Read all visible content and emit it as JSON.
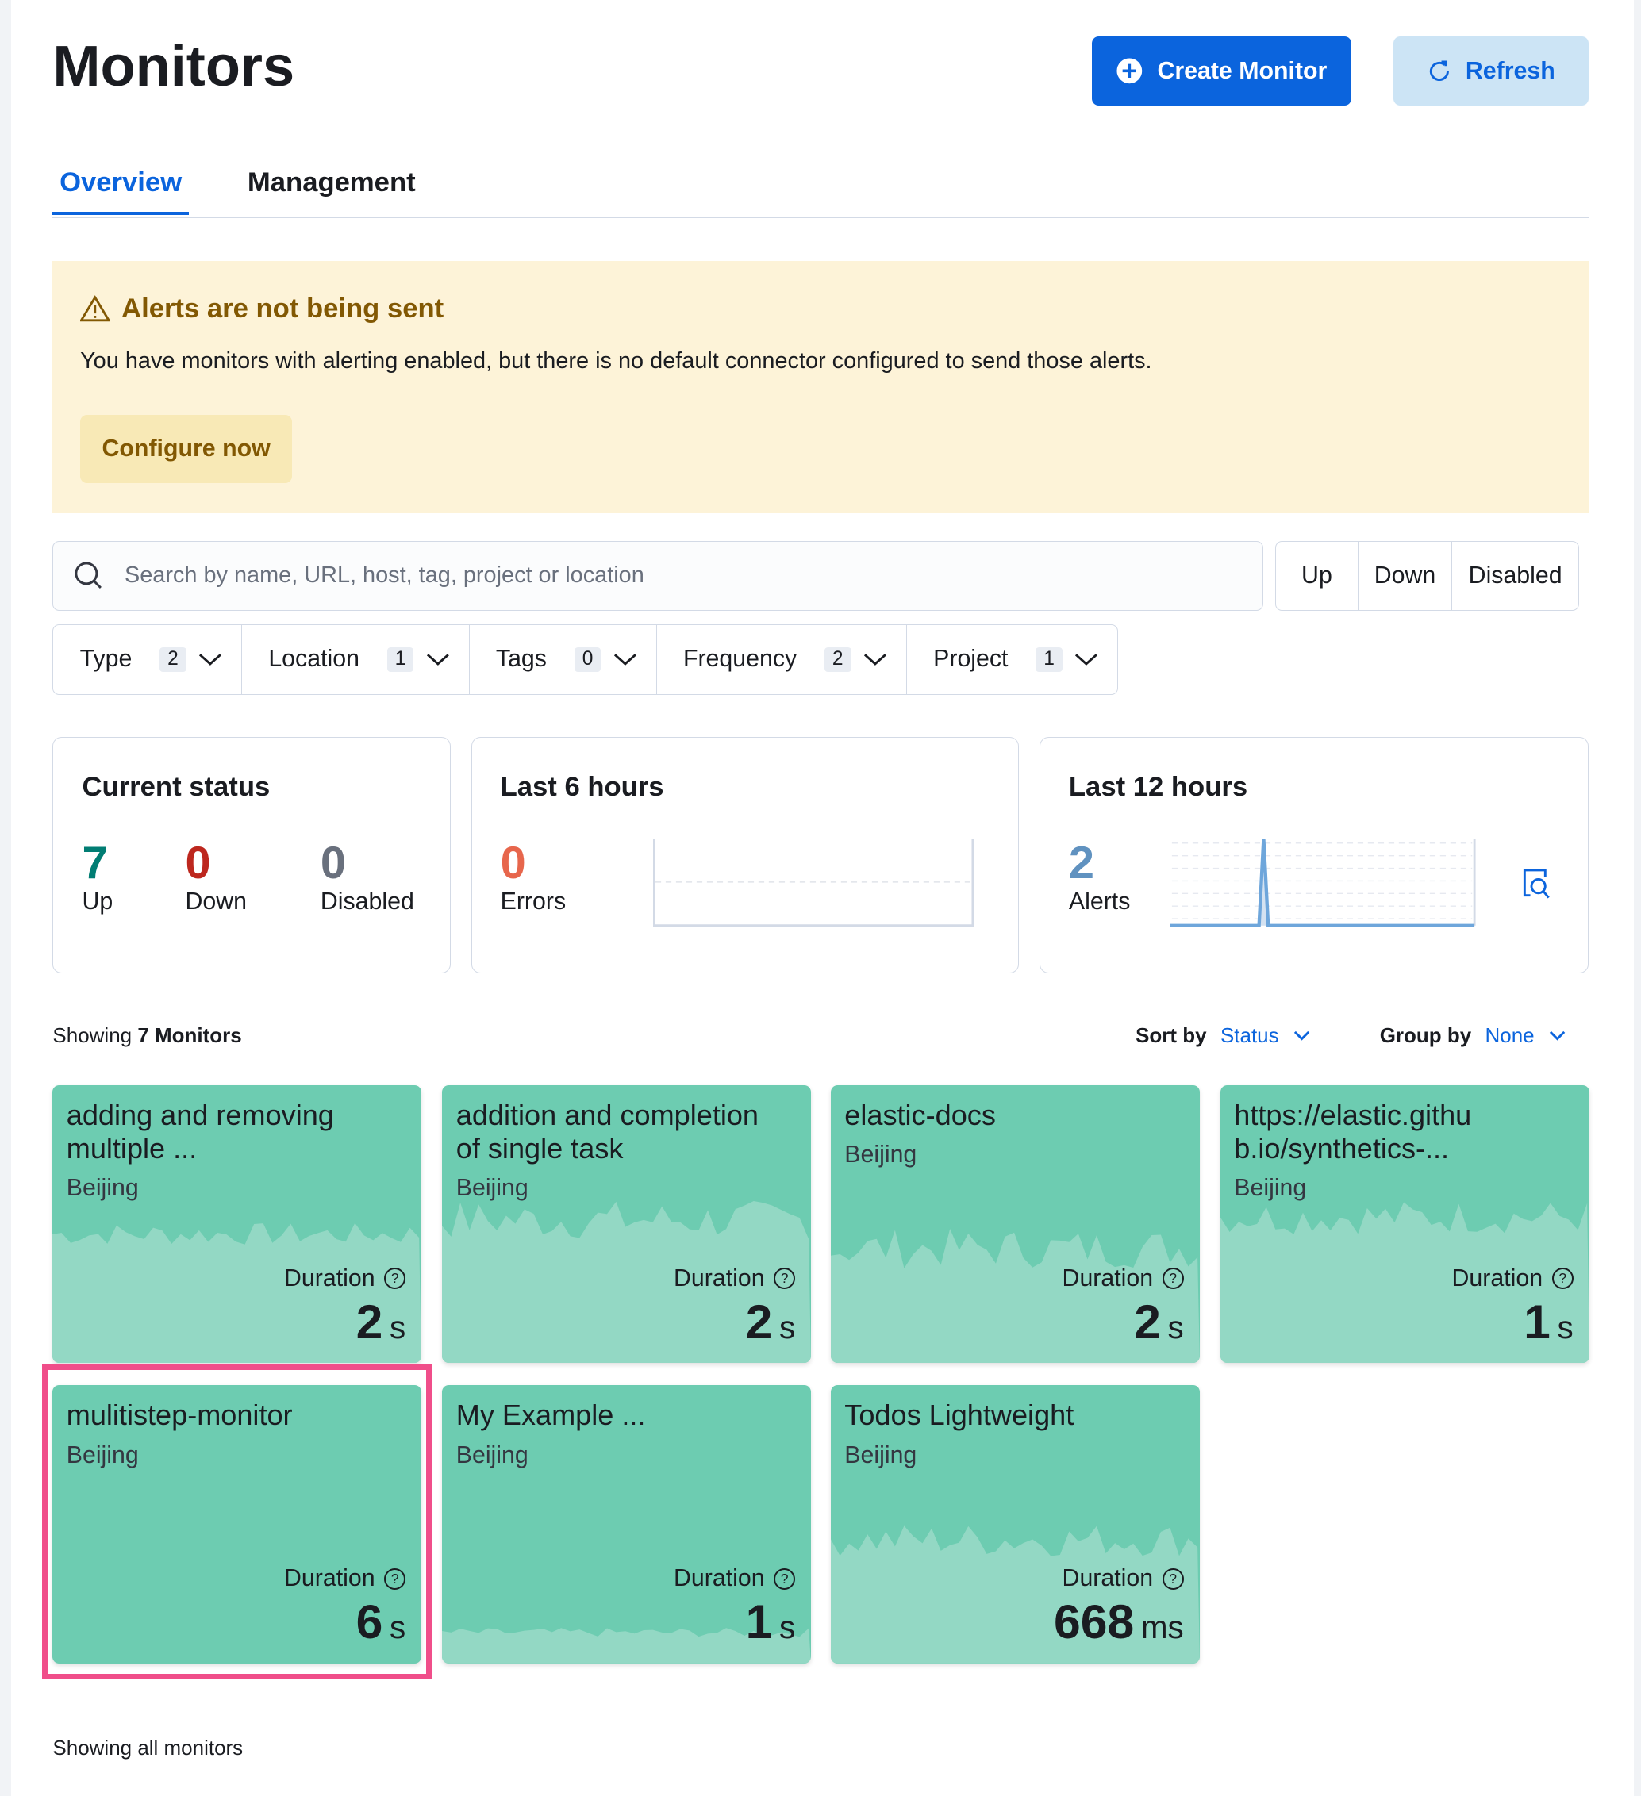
{
  "header": {
    "title": "Monitors",
    "create_label": "Create Monitor",
    "refresh_label": "Refresh"
  },
  "tabs": [
    {
      "label": "Overview",
      "active": true
    },
    {
      "label": "Management",
      "active": false
    }
  ],
  "callout": {
    "title": "Alerts are not being sent",
    "body": "You have monitors with alerting enabled, but there is no default connector configured to send those alerts.",
    "button": "Configure now"
  },
  "search": {
    "placeholder": "Search by name, URL, host, tag, project or location",
    "value": ""
  },
  "status_filter": [
    "Up",
    "Down",
    "Disabled"
  ],
  "filters": [
    {
      "label": "Type",
      "count": "2"
    },
    {
      "label": "Location",
      "count": "1"
    },
    {
      "label": "Tags",
      "count": "0"
    },
    {
      "label": "Frequency",
      "count": "2"
    },
    {
      "label": "Project",
      "count": "1"
    }
  ],
  "current_status": {
    "title": "Current status",
    "up": "7",
    "up_label": "Up",
    "down": "0",
    "down_label": "Down",
    "disabled": "0",
    "disabled_label": "Disabled"
  },
  "last6": {
    "title": "Last 6 hours",
    "errors": "0",
    "errors_label": "Errors"
  },
  "last12": {
    "title": "Last 12 hours",
    "alerts": "2",
    "alerts_label": "Alerts"
  },
  "list": {
    "showing_prefix": "Showing",
    "showing_count": "7 Monitors",
    "sort_label": "Sort by",
    "sort_value": "Status",
    "group_label": "Group by",
    "group_value": "None",
    "footer": "Showing all monitors"
  },
  "colors": {
    "accent": "#0b64dd",
    "up": "#6dccb1",
    "up_text": "#017d73",
    "down": "#bd271e",
    "errors": "#e7664c",
    "alerts": "#6092c0",
    "highlight": "#f04e8a"
  },
  "monitors": [
    {
      "name": "adding and removing multiple ...",
      "location": "Beijing",
      "duration_label": "Duration",
      "value": "2",
      "unit": "s"
    },
    {
      "name": "addition and completion of single task",
      "location": "Beijing",
      "duration_label": "Duration",
      "value": "2",
      "unit": "s"
    },
    {
      "name": "elastic-docs",
      "location": "Beijing",
      "duration_label": "Duration",
      "value": "2",
      "unit": "s"
    },
    {
      "name": "https://elastic.githu b.io/synthetics-...",
      "location": "Beijing",
      "duration_label": "Duration",
      "value": "1",
      "unit": "s"
    },
    {
      "name": "mulitistep-monitor",
      "location": "Beijing",
      "duration_label": "Duration",
      "value": "6",
      "unit": "s",
      "highlighted": true
    },
    {
      "name": "My Example ...",
      "location": "Beijing",
      "duration_label": "Duration",
      "value": "1",
      "unit": "s"
    },
    {
      "name": "Todos Lightweight",
      "location": "Beijing",
      "duration_label": "Duration",
      "value": "668",
      "unit": "ms"
    }
  ]
}
